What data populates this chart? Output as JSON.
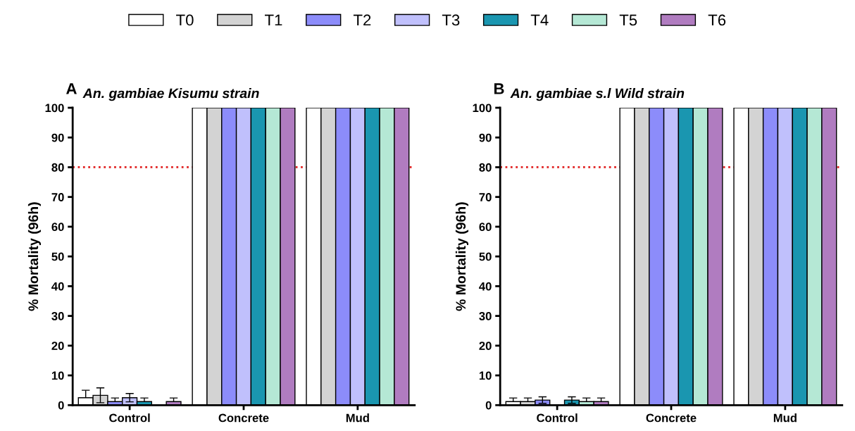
{
  "chart_data": [
    {
      "type": "bar",
      "title": "An. gambiae Kisumu strain",
      "annotations": [
        "A"
      ],
      "ylabel": "% Mortality (96h)",
      "categories": [
        "Control",
        "Concrete",
        "Mud"
      ],
      "ylim": [
        0,
        100
      ],
      "yticks": [
        0,
        10,
        20,
        30,
        40,
        50,
        60,
        70,
        80,
        90,
        100
      ],
      "grid": false,
      "legend": "top",
      "ref_lines": [
        {
          "axis": "y",
          "value": 80,
          "color": "#e02020",
          "line_style": "dotted"
        }
      ],
      "series": [
        {
          "name": "T0",
          "color": "#ffffff",
          "values": [
            2.5,
            100,
            100
          ],
          "errors": [
            [
              2.5,
              5.0
            ],
            null,
            null
          ]
        },
        {
          "name": "T1",
          "color": "#d3d3d3",
          "values": [
            3.3,
            100,
            100
          ],
          "errors": [
            [
              0.8,
              5.8
            ],
            null,
            null
          ]
        },
        {
          "name": "T2",
          "color": "#8c8cfa",
          "values": [
            1.2,
            100,
            100
          ],
          "errors": [
            [
              1.2,
              2.4
            ],
            null,
            null
          ]
        },
        {
          "name": "T3",
          "color": "#c0c0fc",
          "values": [
            2.5,
            100,
            100
          ],
          "errors": [
            [
              1.1,
              3.9
            ],
            null,
            null
          ]
        },
        {
          "name": "T4",
          "color": "#1a96b0",
          "values": [
            1.2,
            100,
            100
          ],
          "errors": [
            [
              1.2,
              2.4
            ],
            null,
            null
          ]
        },
        {
          "name": "T5",
          "color": "#b5e8d5",
          "values": [
            null,
            100,
            100
          ],
          "errors": [
            null,
            null,
            null
          ]
        },
        {
          "name": "T6",
          "color": "#b07cc0",
          "values": [
            1.2,
            100,
            100
          ],
          "errors": [
            [
              1.2,
              2.4
            ],
            null,
            null
          ]
        }
      ]
    },
    {
      "type": "bar",
      "title": "An. gambiae s.l Wild strain",
      "annotations": [
        "B"
      ],
      "ylabel": "% Mortality (96h)",
      "categories": [
        "Control",
        "Concrete",
        "Mud"
      ],
      "ylim": [
        0,
        100
      ],
      "yticks": [
        0,
        10,
        20,
        30,
        40,
        50,
        60,
        70,
        80,
        90,
        100
      ],
      "grid": false,
      "ref_lines": [
        {
          "axis": "y",
          "value": 80,
          "color": "#e02020",
          "line_style": "dotted"
        }
      ],
      "series": [
        {
          "color": "#ffffff",
          "values": [
            1.2,
            100,
            100
          ],
          "errors": [
            [
              1.2,
              2.4
            ],
            null,
            null
          ]
        },
        {
          "color": "#d3d3d3",
          "values": [
            1.2,
            100,
            100
          ],
          "errors": [
            [
              1.2,
              2.4
            ],
            null,
            null
          ]
        },
        {
          "color": "#8c8cfa",
          "values": [
            1.7,
            100,
            100
          ],
          "errors": [
            [
              0.6,
              2.8
            ],
            null,
            null
          ]
        },
        {
          "color": "#c0c0fc",
          "values": [
            null,
            100,
            100
          ],
          "errors": [
            null,
            null,
            null
          ]
        },
        {
          "color": "#1a96b0",
          "values": [
            1.7,
            100,
            100
          ],
          "errors": [
            [
              0.6,
              2.8
            ],
            null,
            null
          ]
        },
        {
          "color": "#b5e8d5",
          "values": [
            1.2,
            100,
            100
          ],
          "errors": [
            [
              1.2,
              2.4
            ],
            null,
            null
          ]
        },
        {
          "color": "#b07cc0",
          "values": [
            1.2,
            100,
            100
          ],
          "errors": [
            [
              1.2,
              2.4
            ],
            null,
            null
          ]
        }
      ]
    }
  ]
}
